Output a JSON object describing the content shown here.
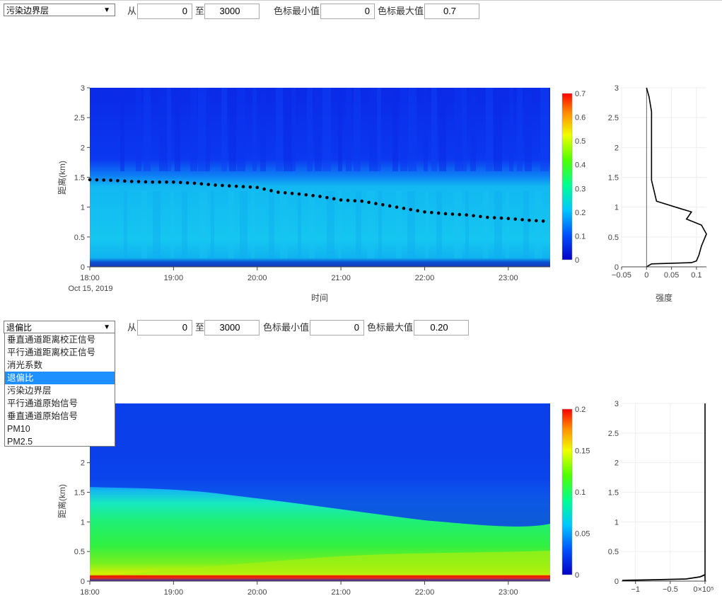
{
  "panel1": {
    "select_value": "污染边界层",
    "from_label": "从",
    "from_value": "0",
    "to_label": "至",
    "to_value": "3000",
    "cmin_label": "色标最小值",
    "cmin_value": "0",
    "cmax_label": "色标最大值",
    "cmax_value": "0.7"
  },
  "panel2": {
    "select_value": "退偏比",
    "from_label": "从",
    "from_value": "0",
    "to_label": "至",
    "to_value": "3000",
    "cmin_label": "色标最小值",
    "cmin_value": "0",
    "cmax_label": "色标最大值",
    "cmax_value": "0.20",
    "dropdown_options": [
      "垂直通道距离校正信号",
      "平行通道距离校正信号",
      "消光系数",
      "退偏比",
      "污染边界层",
      "平行通道原始信号",
      "垂直通道原始信号",
      "PM10",
      "PM2.5"
    ],
    "dropdown_selected_index": 3
  },
  "colors": {
    "selected_option": "#1e90ff"
  },
  "chart_data": [
    {
      "type": "heatmap",
      "title": "",
      "xlabel": "时间",
      "ylabel": "距离(km)",
      "x_ticks": [
        "18:00",
        "19:00",
        "20:00",
        "21:00",
        "22:00",
        "23:00"
      ],
      "x_date_label": "Oct 15, 2019",
      "y_ticks": [
        "0",
        "0.5",
        "1",
        "1.5",
        "2",
        "2.5",
        "3"
      ],
      "ylim": [
        0,
        3
      ],
      "colorbar": {
        "min": 0,
        "max": 0.7,
        "ticks": [
          "0",
          "0.1",
          "0.2",
          "0.3",
          "0.4",
          "0.5",
          "0.6",
          "0.7"
        ]
      },
      "boundary_layer": {
        "x_hours": [
          18.0,
          18.25,
          18.5,
          18.75,
          19.0,
          19.25,
          19.5,
          19.75,
          20.0,
          20.25,
          20.5,
          20.75,
          21.0,
          21.25,
          21.5,
          21.75,
          22.0,
          22.25,
          22.5,
          22.75,
          23.0,
          23.25,
          23.5
        ],
        "y_km": [
          1.46,
          1.45,
          1.43,
          1.42,
          1.42,
          1.4,
          1.37,
          1.35,
          1.33,
          1.25,
          1.22,
          1.18,
          1.12,
          1.1,
          1.04,
          0.98,
          0.92,
          0.89,
          0.87,
          0.83,
          0.81,
          0.78,
          0.76
        ]
      }
    },
    {
      "type": "line",
      "xlabel": "强度",
      "x_ticks": [
        "−0.05",
        "0",
        "0.05",
        "0.1"
      ],
      "y_ticks": [
        "0",
        "0.5",
        "1",
        "1.5",
        "2",
        "2.5",
        "3"
      ],
      "xlim": [
        -0.05,
        0.12
      ],
      "ylim": [
        0,
        3
      ],
      "profile": {
        "x": [
          0.0,
          0.01,
          0.09,
          0.1,
          0.105,
          0.11,
          0.12,
          0.11,
          0.08,
          0.09,
          0.07,
          0.02,
          0.01,
          0.01,
          0.01,
          0.01,
          0.01,
          0.005,
          0.0
        ],
        "y": [
          0.0,
          0.05,
          0.07,
          0.1,
          0.2,
          0.35,
          0.55,
          0.7,
          0.8,
          0.92,
          0.97,
          1.1,
          1.45,
          1.7,
          2.0,
          2.3,
          2.6,
          2.85,
          3.0
        ]
      }
    },
    {
      "type": "heatmap",
      "xlabel": "",
      "ylabel": "距离(km)",
      "x_ticks": [
        "18:00",
        "19:00",
        "20:00",
        "21:00",
        "22:00",
        "23:00"
      ],
      "y_ticks": [
        "0",
        "0.5",
        "1",
        "1.5",
        "2"
      ],
      "ylim": [
        0,
        3
      ],
      "colorbar": {
        "min": 0,
        "max": 0.2,
        "ticks": [
          "0",
          "0.05",
          "0.1",
          "0.15",
          "0.2"
        ]
      }
    },
    {
      "type": "line",
      "x_ticks": [
        "−1",
        "−0.5",
        "0×10⁵"
      ],
      "y_ticks": [
        "0",
        "0.5",
        "1",
        "1.5",
        "2",
        "2.5",
        "3"
      ],
      "xlim": [
        -1.2,
        0
      ],
      "ylim": [
        0,
        3
      ]
    }
  ]
}
